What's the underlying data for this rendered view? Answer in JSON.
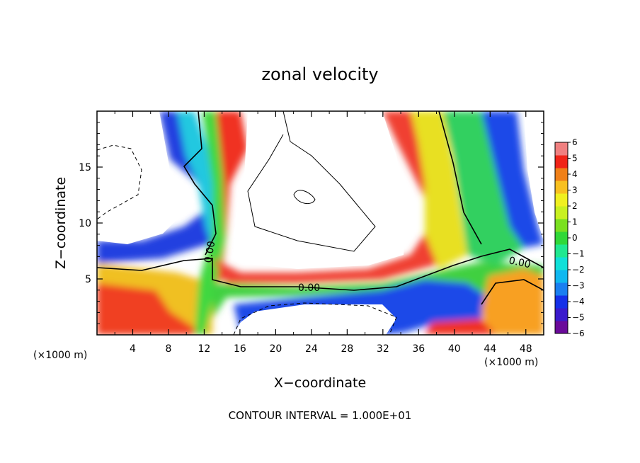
{
  "chart_data": {
    "type": "heatmap",
    "title": "zonal velocity",
    "xlabel": "X−coordinate",
    "ylabel": "Z−coordinate",
    "x_unit_label": "(×1000 m)",
    "xlim": [
      0,
      50
    ],
    "ylim": [
      0,
      20
    ],
    "x_ticks": [
      "4",
      "8",
      "12",
      "16",
      "20",
      "24",
      "28",
      "32",
      "36",
      "40",
      "44",
      "48"
    ],
    "y_ticks": [
      "5",
      "10",
      "15"
    ],
    "colorbar": {
      "range": [
        -6,
        6
      ],
      "tick_labels": [
        "6",
        "5",
        "4",
        "3",
        "2",
        "1",
        "0",
        "−1",
        "−2",
        "−3",
        "−4",
        "−5",
        "−6"
      ],
      "colors": [
        "#6a0a9a",
        "#3a1acc",
        "#1530e8",
        "#1a7ff0",
        "#10b8f0",
        "#10e0d8",
        "#20e890",
        "#30d838",
        "#7ae020",
        "#c8f020",
        "#f0f020",
        "#f8c020",
        "#f08018",
        "#f02418",
        "#f08080"
      ]
    },
    "contour_labels": [
      "0.00",
      "0.00",
      "0.00"
    ],
    "annotation": "CONTOUR INTERVAL = 1.000E+01"
  }
}
